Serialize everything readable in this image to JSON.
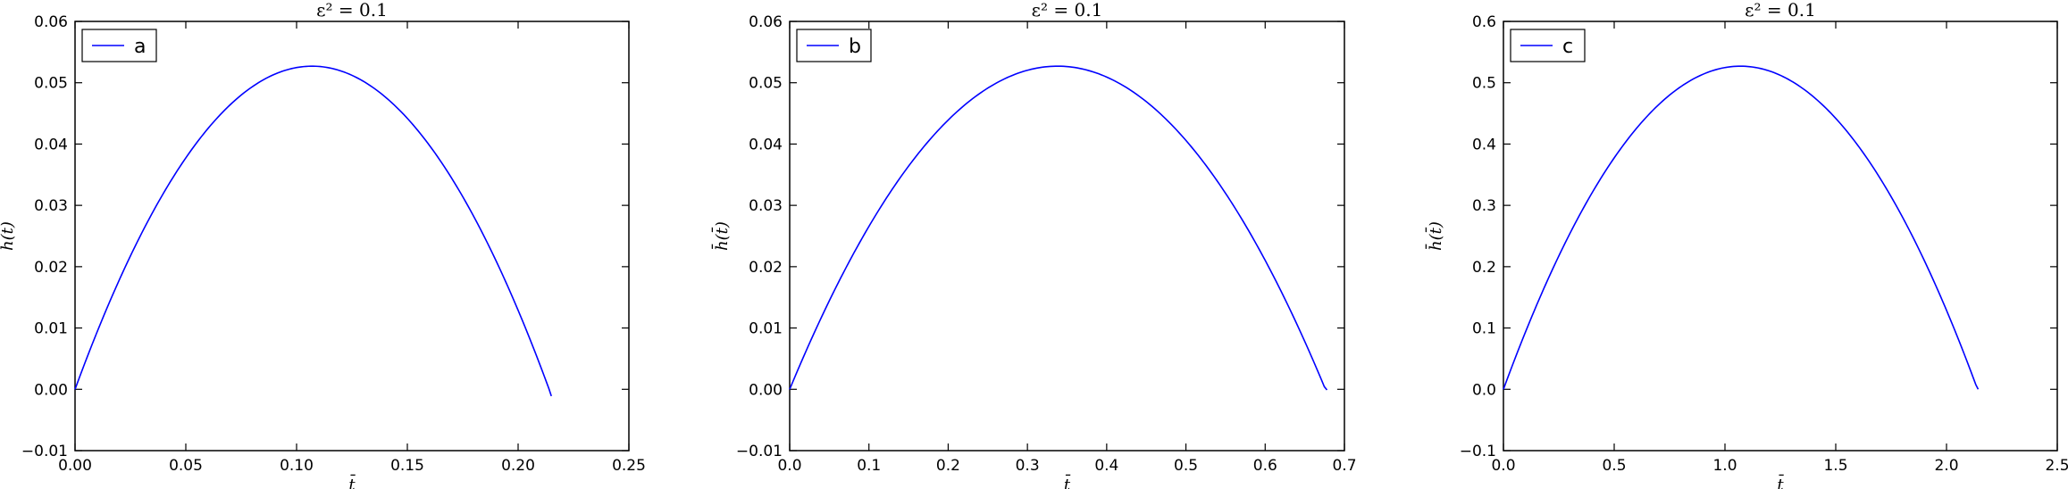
{
  "chart_data": [
    {
      "type": "line",
      "title": "ε² = 0.1",
      "xlabel": "t̄",
      "ylabel": "h̄(t̄)",
      "xlim": [
        0.0,
        0.25
      ],
      "ylim": [
        -0.01,
        0.06
      ],
      "xticks": [
        "0.00",
        "0.05",
        "0.10",
        "0.15",
        "0.20",
        "0.25"
      ],
      "yticks": [
        "−0.01",
        "0.00",
        "0.01",
        "0.02",
        "0.03",
        "0.04",
        "0.05",
        "0.06"
      ],
      "legend_position": "top-left",
      "series": [
        {
          "name": "a",
          "color": "#0000ff",
          "curve": "parabola",
          "x_start": 0.0,
          "x_peak": 0.107,
          "y_peak": 0.0527,
          "x_end": 0.215,
          "y_end": -0.0011
        }
      ]
    },
    {
      "type": "line",
      "title": "ε² = 0.1",
      "xlabel": "t̄",
      "ylabel": "h̄(t̄)",
      "xlim": [
        0.0,
        0.7
      ],
      "ylim": [
        -0.01,
        0.06
      ],
      "xticks": [
        "0.0",
        "0.1",
        "0.2",
        "0.3",
        "0.4",
        "0.5",
        "0.6",
        "0.7"
      ],
      "yticks": [
        "−0.01",
        "0.00",
        "0.01",
        "0.02",
        "0.03",
        "0.04",
        "0.05",
        "0.06"
      ],
      "legend_position": "top-left",
      "series": [
        {
          "name": "b",
          "color": "#0000ff",
          "curve": "parabola",
          "x_start": 0.0,
          "x_peak": 0.338,
          "y_peak": 0.0527,
          "x_end": 0.678,
          "y_end": -0.0001
        }
      ]
    },
    {
      "type": "line",
      "title": "ε² = 0.1",
      "xlabel": "t̄",
      "ylabel": "h̄(t̄)",
      "xlim": [
        0.0,
        2.5
      ],
      "ylim": [
        -0.1,
        0.6
      ],
      "xticks": [
        "0.0",
        "0.5",
        "1.0",
        "1.5",
        "2.0",
        "2.5"
      ],
      "yticks": [
        "−0.1",
        "0.0",
        "0.1",
        "0.2",
        "0.3",
        "0.4",
        "0.5",
        "0.6"
      ],
      "legend_position": "top-left",
      "series": [
        {
          "name": "c",
          "color": "#0000ff",
          "curve": "parabola",
          "x_start": 0.0,
          "x_peak": 1.07,
          "y_peak": 0.527,
          "x_end": 2.143,
          "y_end": 0.0
        }
      ]
    }
  ]
}
